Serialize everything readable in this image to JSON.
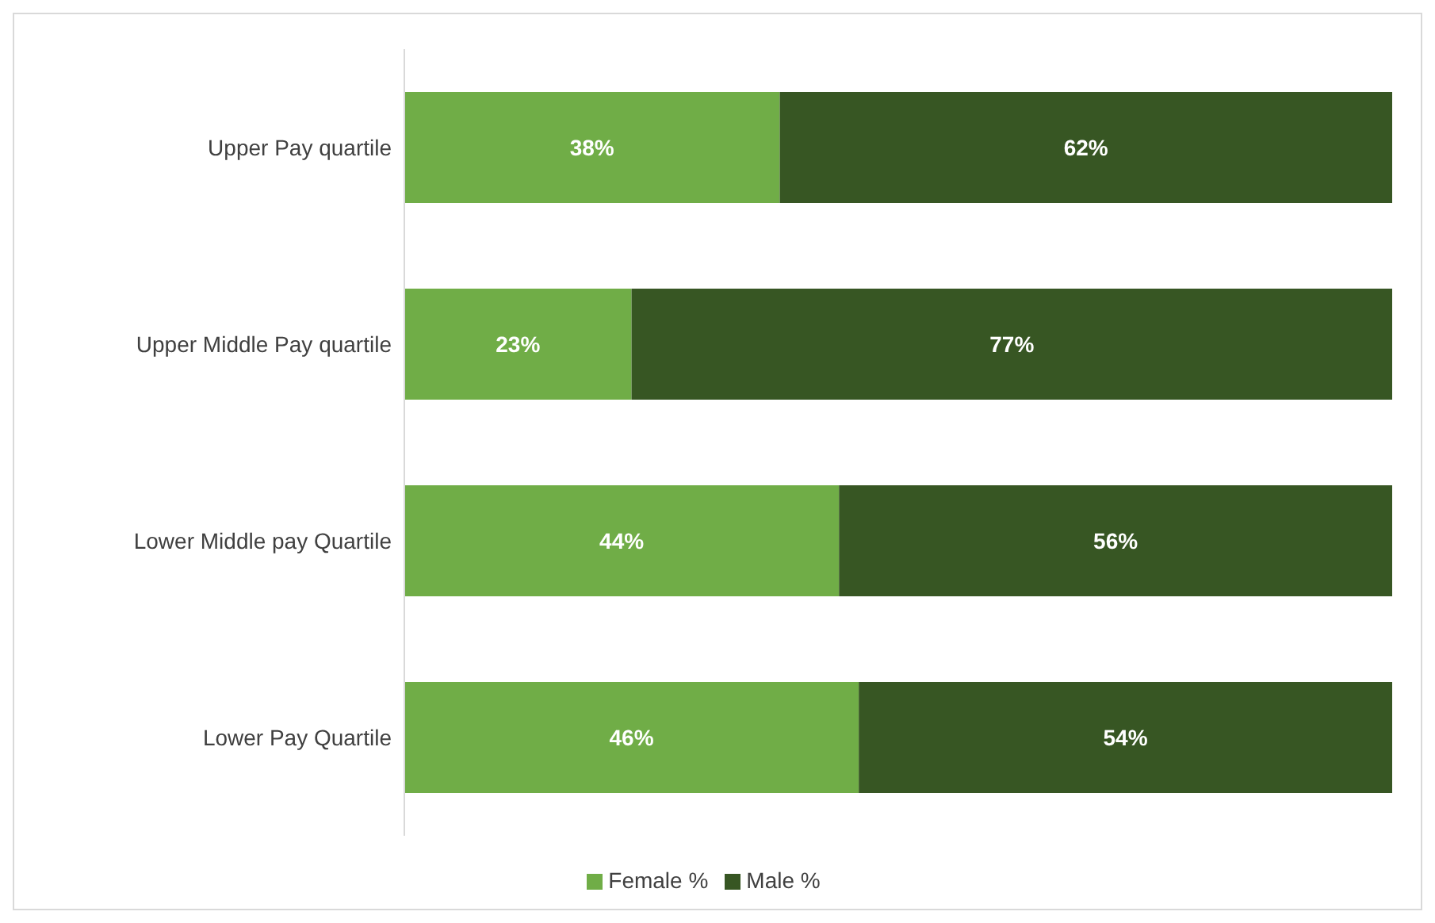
{
  "chart_data": {
    "type": "bar",
    "orientation": "horizontal",
    "stacked": true,
    "categories": [
      "Upper Pay quartile",
      "Upper Middle Pay quartile",
      "Lower Middle pay Quartile",
      "Lower Pay Quartile"
    ],
    "series": [
      {
        "name": "Female %",
        "color": "#70ad47",
        "values": [
          38,
          23,
          44,
          46
        ],
        "value_labels": [
          "38%",
          "23%",
          "44%",
          "46%"
        ]
      },
      {
        "name": "Male %",
        "color": "#375623",
        "values": [
          62,
          77,
          56,
          54
        ],
        "value_labels": [
          "62%",
          "77%",
          "56%",
          "54%"
        ]
      }
    ],
    "xlim": [
      0,
      100
    ],
    "legend": "bottom",
    "tick_labels": "y"
  }
}
